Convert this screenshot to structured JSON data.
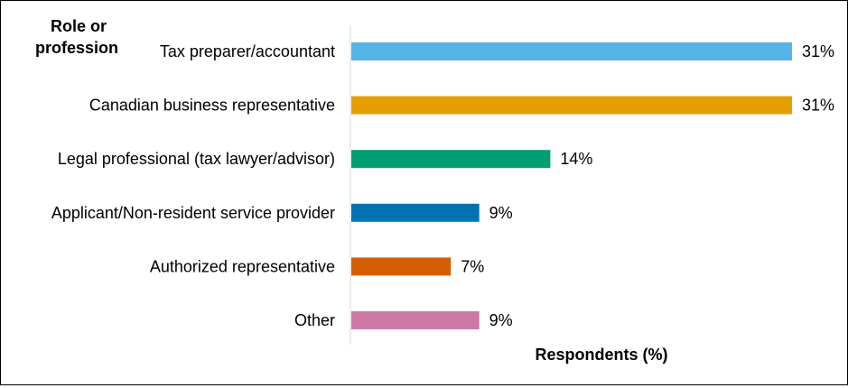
{
  "chart_data": {
    "type": "bar",
    "orientation": "horizontal",
    "ylabel": "Role or profession",
    "xlabel": "Respondents (%)",
    "xlim": [
      0,
      31
    ],
    "grid": false,
    "categories": [
      "Tax preparer/accountant",
      "Canadian business representative",
      "Legal professional (tax lawyer/advisor)",
      "Applicant/Non-resident service provider",
      "Authorized representative",
      "Other"
    ],
    "values": [
      31,
      31,
      14,
      9,
      7,
      9
    ],
    "value_labels": [
      "31%",
      "31%",
      "14%",
      "9%",
      "7%",
      "9%"
    ],
    "colors": [
      "#56B4E9",
      "#E69F00",
      "#009E73",
      "#0072B2",
      "#D55E00",
      "#CC79A7"
    ]
  }
}
